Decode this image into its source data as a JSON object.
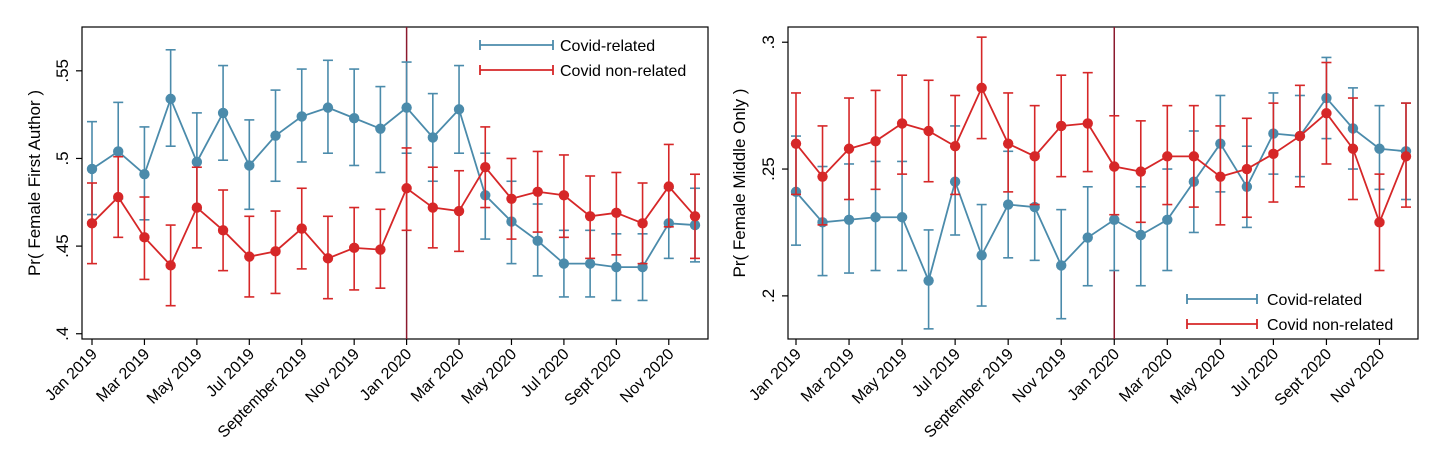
{
  "colors": {
    "covid": "#4b8bab",
    "noncovid": "#d62728",
    "vline": "#8b1a2e",
    "axis": "#000000"
  },
  "chart_data": [
    {
      "type": "line",
      "ylabel": "Pr( Female First Author )",
      "ylim": [
        0.397,
        0.575
      ],
      "yticks": [
        0.4,
        0.45,
        0.5,
        0.55
      ],
      "ytick_labels": [
        ".4",
        ".45",
        ".5",
        ".55"
      ],
      "months": 24,
      "xtick_indices": [
        0,
        2,
        4,
        6,
        8,
        10,
        12,
        14,
        16,
        18,
        20,
        22
      ],
      "xtick_labels": [
        "Jan 2019",
        "Mar 2019",
        "May 2019",
        "Jul 2019",
        "September 2019",
        "Nov 2019",
        "Jan 2020",
        "Mar 2020",
        "May 2020",
        "Jul 2020",
        "Sept 2020",
        "Nov 2020"
      ],
      "vline_index": 12,
      "legend_position": "top-right",
      "series": [
        {
          "name": "Covid-related",
          "color_key": "covid",
          "values": [
            0.494,
            0.504,
            0.491,
            0.534,
            0.498,
            0.526,
            0.496,
            0.513,
            0.524,
            0.529,
            0.523,
            0.517,
            0.529,
            0.512,
            0.528,
            0.479,
            0.464,
            0.453,
            0.44,
            0.44,
            0.438,
            0.438,
            0.463,
            0.462
          ],
          "lower": [
            0.468,
            0.477,
            0.465,
            0.507,
            0.471,
            0.499,
            0.471,
            0.487,
            0.498,
            0.503,
            0.496,
            0.492,
            0.503,
            0.487,
            0.503,
            0.454,
            0.44,
            0.433,
            0.421,
            0.421,
            0.419,
            0.419,
            0.443,
            0.441
          ],
          "upper": [
            0.521,
            0.532,
            0.518,
            0.562,
            0.526,
            0.553,
            0.522,
            0.539,
            0.551,
            0.556,
            0.551,
            0.541,
            0.555,
            0.537,
            0.553,
            0.503,
            0.487,
            0.474,
            0.459,
            0.459,
            0.457,
            0.457,
            0.483,
            0.483
          ]
        },
        {
          "name": "Covid non-related",
          "color_key": "noncovid",
          "values": [
            0.463,
            0.478,
            0.455,
            0.439,
            0.472,
            0.459,
            0.444,
            0.447,
            0.46,
            0.443,
            0.449,
            0.448,
            0.483,
            0.472,
            0.47,
            0.495,
            0.477,
            0.481,
            0.479,
            0.467,
            0.469,
            0.463,
            0.484,
            0.467
          ],
          "lower": [
            0.44,
            0.455,
            0.431,
            0.416,
            0.449,
            0.436,
            0.421,
            0.423,
            0.437,
            0.42,
            0.425,
            0.426,
            0.459,
            0.449,
            0.447,
            0.472,
            0.454,
            0.458,
            0.455,
            0.443,
            0.445,
            0.44,
            0.461,
            0.443
          ],
          "upper": [
            0.486,
            0.501,
            0.478,
            0.462,
            0.495,
            0.482,
            0.467,
            0.47,
            0.483,
            0.467,
            0.472,
            0.471,
            0.506,
            0.495,
            0.493,
            0.518,
            0.5,
            0.504,
            0.502,
            0.49,
            0.492,
            0.486,
            0.508,
            0.491
          ]
        }
      ]
    },
    {
      "type": "line",
      "ylabel": "Pr( Female Middle Only )",
      "ylim": [
        0.183,
        0.306
      ],
      "yticks": [
        0.2,
        0.25,
        0.3
      ],
      "ytick_labels": [
        ".2",
        ".25",
        ".3"
      ],
      "months": 24,
      "xtick_indices": [
        0,
        2,
        4,
        6,
        8,
        10,
        12,
        14,
        16,
        18,
        20,
        22
      ],
      "xtick_labels": [
        "Jan 2019",
        "Mar 2019",
        "May 2019",
        "Jul 2019",
        "September 2019",
        "Nov 2019",
        "Jan 2020",
        "Mar 2020",
        "May 2020",
        "Jul 2020",
        "Sept 2020",
        "Nov 2020"
      ],
      "vline_index": 12,
      "legend_position": "bottom-right",
      "series": [
        {
          "name": "Covid-related",
          "color_key": "covid",
          "values": [
            0.241,
            0.229,
            0.23,
            0.231,
            0.231,
            0.206,
            0.245,
            0.216,
            0.236,
            0.235,
            0.212,
            0.223,
            0.23,
            0.224,
            0.23,
            0.245,
            0.26,
            0.243,
            0.264,
            0.263,
            0.278,
            0.266,
            0.258,
            0.257
          ],
          "lower": [
            0.22,
            0.208,
            0.209,
            0.21,
            0.21,
            0.187,
            0.224,
            0.196,
            0.215,
            0.214,
            0.191,
            0.204,
            0.21,
            0.204,
            0.21,
            0.225,
            0.241,
            0.227,
            0.248,
            0.247,
            0.262,
            0.25,
            0.242,
            0.238
          ],
          "upper": [
            0.263,
            0.251,
            0.252,
            0.253,
            0.253,
            0.226,
            0.267,
            0.236,
            0.257,
            0.256,
            0.234,
            0.243,
            0.251,
            0.243,
            0.25,
            0.265,
            0.279,
            0.259,
            0.28,
            0.279,
            0.294,
            0.282,
            0.275,
            0.276
          ]
        },
        {
          "name": "Covid non-related",
          "color_key": "noncovid",
          "values": [
            0.26,
            0.247,
            0.258,
            0.261,
            0.268,
            0.265,
            0.259,
            0.282,
            0.26,
            0.255,
            0.267,
            0.268,
            0.251,
            0.249,
            0.255,
            0.255,
            0.247,
            0.25,
            0.256,
            0.263,
            0.272,
            0.258,
            0.229,
            0.255
          ],
          "lower": [
            0.24,
            0.228,
            0.238,
            0.242,
            0.248,
            0.245,
            0.24,
            0.262,
            0.241,
            0.236,
            0.247,
            0.249,
            0.232,
            0.229,
            0.236,
            0.235,
            0.228,
            0.231,
            0.237,
            0.243,
            0.252,
            0.238,
            0.21,
            0.235
          ],
          "upper": [
            0.28,
            0.267,
            0.278,
            0.281,
            0.287,
            0.285,
            0.279,
            0.302,
            0.28,
            0.275,
            0.287,
            0.288,
            0.271,
            0.269,
            0.275,
            0.275,
            0.267,
            0.27,
            0.276,
            0.283,
            0.292,
            0.278,
            0.248,
            0.276
          ]
        }
      ]
    }
  ]
}
